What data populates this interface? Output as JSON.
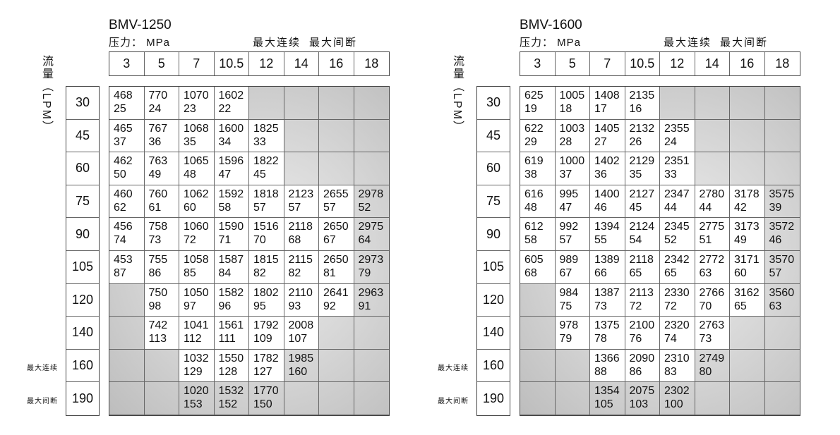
{
  "pressures": [
    "3",
    "5",
    "7",
    "10.5",
    "12",
    "14",
    "16",
    "18"
  ],
  "flows": [
    "30",
    "45",
    "60",
    "75",
    "90",
    "105",
    "120",
    "140",
    "160",
    "190"
  ],
  "y_label": "流量（LPM）",
  "unit_label": "压力： MPa",
  "legend": {
    "continuous": "最大连续",
    "intermittent": "最大间断"
  },
  "row_tags": {
    "160": "最大连续",
    "190": "最大间断"
  },
  "zones": {
    "c": "max continuous (white)",
    "i": "max intermittent (gray)"
  },
  "tables": [
    {
      "model": "BMV-1250",
      "rows": [
        [
          [
            "468",
            "25",
            "c"
          ],
          [
            "770",
            "24",
            "c"
          ],
          [
            "1070",
            "23",
            "c"
          ],
          [
            "1602",
            "22",
            "c"
          ],
          null,
          null,
          null,
          null
        ],
        [
          [
            "465",
            "37",
            "c"
          ],
          [
            "767",
            "36",
            "c"
          ],
          [
            "1068",
            "35",
            "c"
          ],
          [
            "1600",
            "34",
            "c"
          ],
          [
            "1825",
            "33",
            "c"
          ],
          null,
          null,
          null
        ],
        [
          [
            "462",
            "50",
            "c"
          ],
          [
            "763",
            "49",
            "c"
          ],
          [
            "1065",
            "48",
            "c"
          ],
          [
            "1596",
            "47",
            "c"
          ],
          [
            "1822",
            "45",
            "c"
          ],
          null,
          null,
          null
        ],
        [
          [
            "460",
            "62",
            "c"
          ],
          [
            "760",
            "61",
            "c"
          ],
          [
            "1062",
            "60",
            "c"
          ],
          [
            "1592",
            "58",
            "c"
          ],
          [
            "1818",
            "57",
            "c"
          ],
          [
            "2123",
            "57",
            "c"
          ],
          [
            "2655",
            "57",
            "c"
          ],
          [
            "2978",
            "52",
            "i"
          ]
        ],
        [
          [
            "456",
            "74",
            "c"
          ],
          [
            "758",
            "73",
            "c"
          ],
          [
            "1060",
            "72",
            "c"
          ],
          [
            "1590",
            "71",
            "c"
          ],
          [
            "1516",
            "70",
            "c"
          ],
          [
            "2118",
            "68",
            "c"
          ],
          [
            "2650",
            "67",
            "c"
          ],
          [
            "2975",
            "64",
            "i"
          ]
        ],
        [
          [
            "453",
            "87",
            "c"
          ],
          [
            "755",
            "86",
            "c"
          ],
          [
            "1058",
            "85",
            "c"
          ],
          [
            "1587",
            "84",
            "c"
          ],
          [
            "1815",
            "82",
            "c"
          ],
          [
            "2115",
            "82",
            "c"
          ],
          [
            "2650",
            "81",
            "c"
          ],
          [
            "2973",
            "79",
            "i"
          ]
        ],
        [
          null,
          [
            "750",
            "98",
            "c"
          ],
          [
            "1050",
            "97",
            "c"
          ],
          [
            "1582",
            "96",
            "c"
          ],
          [
            "1802",
            "95",
            "c"
          ],
          [
            "2110",
            "93",
            "c"
          ],
          [
            "2641",
            "92",
            "c"
          ],
          [
            "2963",
            "91",
            "i"
          ]
        ],
        [
          null,
          [
            "742",
            "113",
            "c"
          ],
          [
            "1041",
            "112",
            "c"
          ],
          [
            "1561",
            "111",
            "c"
          ],
          [
            "1792",
            "109",
            "c"
          ],
          [
            "2008",
            "107",
            "c"
          ],
          null,
          null
        ],
        [
          null,
          null,
          [
            "1032",
            "129",
            "c"
          ],
          [
            "1550",
            "128",
            "c"
          ],
          [
            "1782",
            "127",
            "c"
          ],
          [
            "1985",
            "160",
            "i"
          ],
          null,
          null
        ],
        [
          null,
          null,
          [
            "1020",
            "153",
            "i"
          ],
          [
            "1532",
            "152",
            "i"
          ],
          [
            "1770",
            "150",
            "i"
          ],
          null,
          null,
          null
        ]
      ]
    },
    {
      "model": "BMV-1600",
      "rows": [
        [
          [
            "625",
            "19",
            "c"
          ],
          [
            "1005",
            "18",
            "c"
          ],
          [
            "1408",
            "17",
            "c"
          ],
          [
            "2135",
            "16",
            "c"
          ],
          null,
          null,
          null,
          null
        ],
        [
          [
            "622",
            "29",
            "c"
          ],
          [
            "1003",
            "28",
            "c"
          ],
          [
            "1405",
            "27",
            "c"
          ],
          [
            "2132",
            "26",
            "c"
          ],
          [
            "2355",
            "24",
            "c"
          ],
          null,
          null,
          null
        ],
        [
          [
            "619",
            "38",
            "c"
          ],
          [
            "1000",
            "37",
            "c"
          ],
          [
            "1402",
            "36",
            "c"
          ],
          [
            "2129",
            "35",
            "c"
          ],
          [
            "2351",
            "33",
            "c"
          ],
          null,
          null,
          null
        ],
        [
          [
            "616",
            "48",
            "c"
          ],
          [
            "995",
            "47",
            "c"
          ],
          [
            "1400",
            "46",
            "c"
          ],
          [
            "2127",
            "45",
            "c"
          ],
          [
            "2347",
            "44",
            "c"
          ],
          [
            "2780",
            "44",
            "c"
          ],
          [
            "3178",
            "42",
            "c"
          ],
          [
            "3575",
            "39",
            "i"
          ]
        ],
        [
          [
            "612",
            "58",
            "c"
          ],
          [
            "992",
            "57",
            "c"
          ],
          [
            "1394",
            "55",
            "c"
          ],
          [
            "2124",
            "54",
            "c"
          ],
          [
            "2345",
            "52",
            "c"
          ],
          [
            "2775",
            "51",
            "c"
          ],
          [
            "3173",
            "49",
            "c"
          ],
          [
            "3572",
            "46",
            "i"
          ]
        ],
        [
          [
            "605",
            "68",
            "c"
          ],
          [
            "989",
            "67",
            "c"
          ],
          [
            "1389",
            "66",
            "c"
          ],
          [
            "2118",
            "65",
            "c"
          ],
          [
            "2342",
            "65",
            "c"
          ],
          [
            "2772",
            "63",
            "c"
          ],
          [
            "3171",
            "60",
            "c"
          ],
          [
            "3570",
            "57",
            "i"
          ]
        ],
        [
          null,
          [
            "984",
            "75",
            "c"
          ],
          [
            "1387",
            "73",
            "c"
          ],
          [
            "2113",
            "72",
            "c"
          ],
          [
            "2330",
            "72",
            "c"
          ],
          [
            "2766",
            "70",
            "c"
          ],
          [
            "3162",
            "65",
            "c"
          ],
          [
            "3560",
            "63",
            "i"
          ]
        ],
        [
          null,
          [
            "978",
            "79",
            "c"
          ],
          [
            "1375",
            "78",
            "c"
          ],
          [
            "2100",
            "76",
            "c"
          ],
          [
            "2320",
            "74",
            "c"
          ],
          [
            "2763",
            "73",
            "c"
          ],
          null,
          null
        ],
        [
          null,
          null,
          [
            "1366",
            "88",
            "c"
          ],
          [
            "2090",
            "86",
            "c"
          ],
          [
            "2310",
            "83",
            "c"
          ],
          [
            "2749",
            "80",
            "i"
          ],
          null,
          null
        ],
        [
          null,
          null,
          [
            "1354",
            "105",
            "i"
          ],
          [
            "2075",
            "103",
            "i"
          ],
          [
            "2302",
            "100",
            "i"
          ],
          null,
          null,
          null
        ]
      ]
    }
  ]
}
